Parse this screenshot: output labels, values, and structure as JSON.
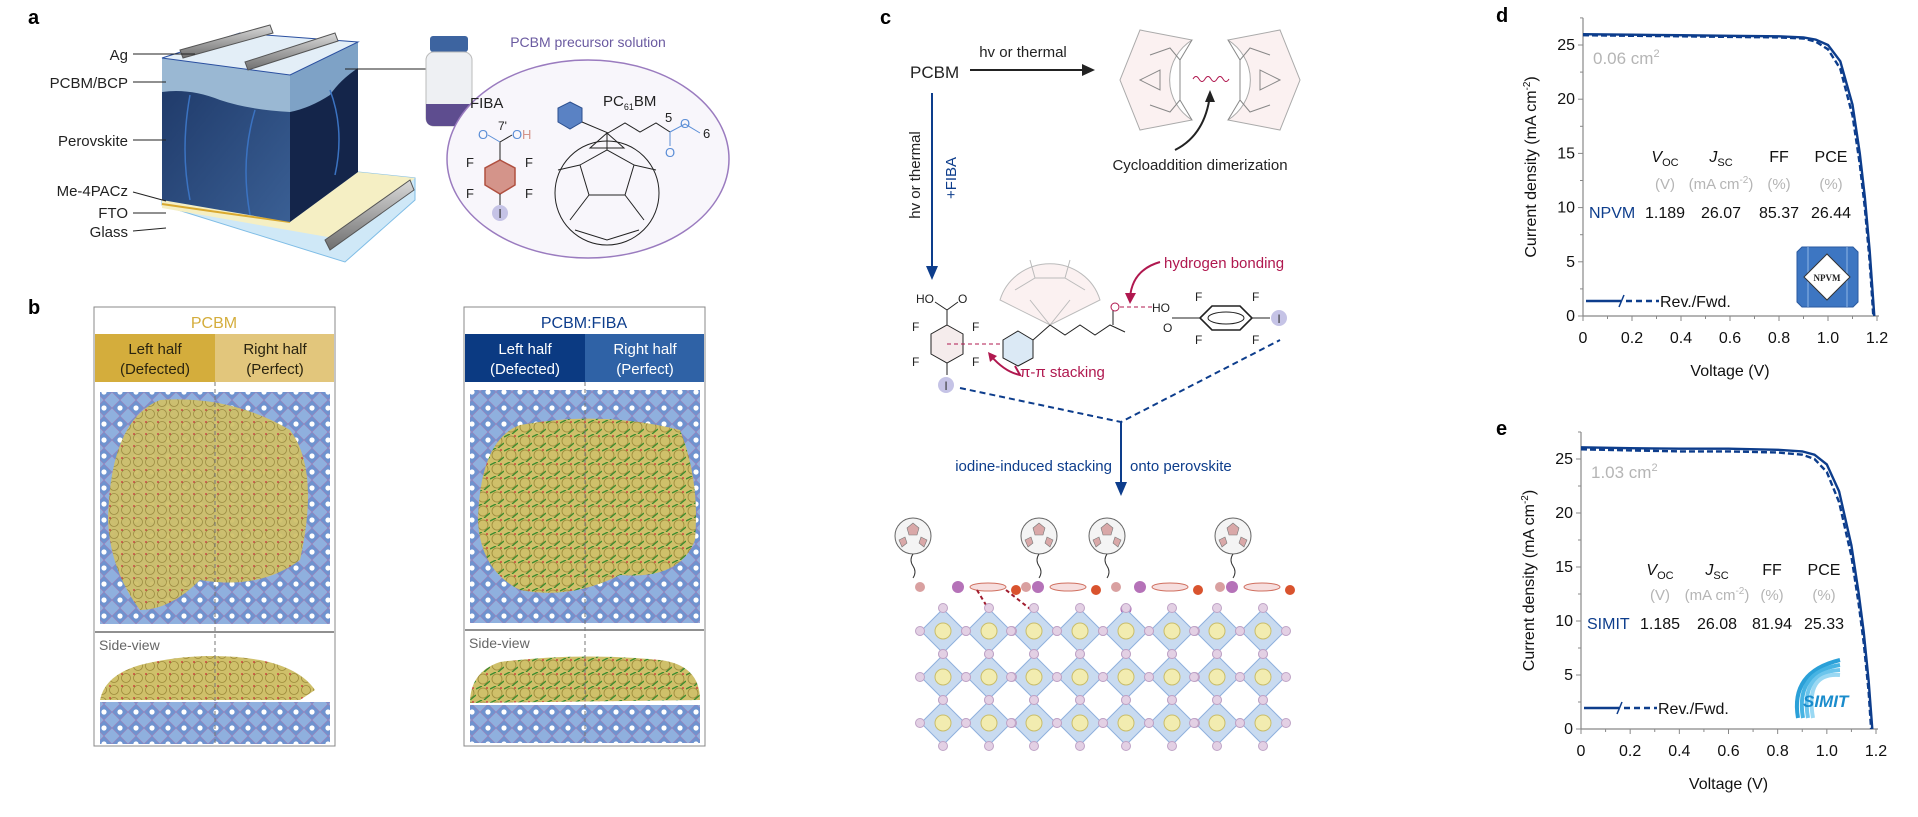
{
  "panel_labels": {
    "a": "a",
    "b": "b",
    "c": "c",
    "d": "d",
    "e": "e"
  },
  "panel_a": {
    "layers": [
      "Ag",
      "PCBM/BCP",
      "Perovskite",
      "Me-4PACz",
      "FTO",
      "Glass"
    ],
    "solution_title": "PCBM precursor solution",
    "fiba": {
      "name": "FIBA",
      "o": "O",
      "oh_o": "O",
      "oh_h": "H",
      "label7": "7'",
      "f": "F",
      "i": "I"
    },
    "pcbm": {
      "name_pre": "PC",
      "name_sub": "61",
      "name_post": "BM",
      "label5": "5",
      "label6": "6",
      "o": "O"
    }
  },
  "panel_b": {
    "left": {
      "title": "PCBM",
      "left_half": [
        "Left half",
        "(Defected)"
      ],
      "right_half": [
        "Right half",
        "(Perfect)"
      ],
      "side_view": "Side-view",
      "colors": {
        "title": "#d4ad3c",
        "left": "#d4ad3c",
        "right": "#e2c67c",
        "text": "#2a2410"
      }
    },
    "right": {
      "title": "PCBM:FIBA",
      "left_half": [
        "Left half",
        "(Defected)"
      ],
      "right_half": [
        "Right half",
        "(Perfect)"
      ],
      "side_view": "Side-view",
      "colors": {
        "title": "#0d3d8c",
        "left": "#0b3a82",
        "right": "#2f62a6",
        "text": "#ffffff"
      }
    }
  },
  "panel_c": {
    "start": "PCBM",
    "top_condition": "hv or thermal",
    "dimer_caption": "Cycloaddition dimerization",
    "side_condition": "hv or thermal",
    "additive": "+FIBA",
    "hydrogen_bonding": "hydrogen bonding",
    "pi_stacking": "π-π stacking",
    "stacking_left": "iodine-induced stacking",
    "stacking_right": "onto perovskite",
    "atoms": {
      "ho": "HO",
      "o": "O",
      "f": "F",
      "i": "I"
    }
  },
  "chart_data": [
    {
      "type": "line",
      "panel": "d",
      "xlabel": "Voltage (V)",
      "ylabel_main": "Current density (mA cm",
      "ylabel_sup": "-2",
      "ylabel_close": ")",
      "xlim": [
        0,
        1.2
      ],
      "ylim": [
        0,
        27.5
      ],
      "xticks": [
        "0",
        "0.2",
        "0.4",
        "0.6",
        "0.8",
        "1.0",
        "1.2"
      ],
      "yticks": [
        "0",
        "5",
        "10",
        "15",
        "20",
        "25"
      ],
      "grid": false,
      "area_label": "0.06 cm",
      "area_sup": "2",
      "legend": {
        "label": "Rev./Fwd.",
        "placement": "bottom-left"
      },
      "table": {
        "headers": [
          {
            "main": "V",
            "sub": "OC"
          },
          {
            "main": "J",
            "sub": "SC"
          },
          {
            "main": "FF",
            "sub": ""
          },
          {
            "main": "PCE",
            "sub": ""
          }
        ],
        "units": [
          "(V)",
          "(mA cm",
          "-2",
          ")",
          "(%)",
          "(%)"
        ],
        "device": "NPVM",
        "values": [
          "1.189",
          "26.07",
          "85.37",
          "26.44"
        ]
      },
      "logo": "NPVM",
      "color": "#0d3d8c",
      "series": [
        {
          "style": "solid",
          "x": [
            0,
            0.2,
            0.4,
            0.6,
            0.8,
            0.9,
            0.95,
            1.0,
            1.05,
            1.1,
            1.13,
            1.15,
            1.17,
            1.189
          ],
          "y": [
            26.0,
            25.95,
            25.9,
            25.85,
            25.8,
            25.7,
            25.5,
            25.0,
            23.5,
            19.5,
            15.0,
            11.0,
            6.0,
            0
          ]
        },
        {
          "style": "dashed",
          "x": [
            0,
            0.2,
            0.4,
            0.6,
            0.8,
            0.9,
            0.95,
            1.0,
            1.05,
            1.1,
            1.13,
            1.15,
            1.17,
            1.185
          ],
          "y": [
            25.9,
            25.85,
            25.8,
            25.75,
            25.7,
            25.6,
            25.3,
            24.6,
            22.8,
            18.5,
            14.0,
            10.0,
            5.0,
            0
          ]
        }
      ]
    },
    {
      "type": "line",
      "panel": "e",
      "xlabel": "Voltage (V)",
      "ylabel_main": "Current density (mA cm",
      "ylabel_sup": "-2",
      "ylabel_close": ")",
      "xlim": [
        0,
        1.2
      ],
      "ylim": [
        0,
        27.5
      ],
      "xticks": [
        "0",
        "0.2",
        "0.4",
        "0.6",
        "0.8",
        "1.0",
        "1.2"
      ],
      "yticks": [
        "0",
        "5",
        "10",
        "15",
        "20",
        "25"
      ],
      "grid": false,
      "area_label": "1.03 cm",
      "area_sup": "2",
      "legend": {
        "label": "Rev./Fwd.",
        "placement": "bottom-left"
      },
      "table": {
        "headers": [
          {
            "main": "V",
            "sub": "OC"
          },
          {
            "main": "J",
            "sub": "SC"
          },
          {
            "main": "FF",
            "sub": ""
          },
          {
            "main": "PCE",
            "sub": ""
          }
        ],
        "units": [
          "(V)",
          "(mA cm",
          "-2",
          ")",
          "(%)",
          "(%)"
        ],
        "device": "SIMIT",
        "values": [
          "1.185",
          "26.08",
          "81.94",
          "25.33"
        ]
      },
      "logo": "SIMIT",
      "color": "#0d3d8c",
      "series": [
        {
          "style": "solid",
          "x": [
            0,
            0.2,
            0.4,
            0.6,
            0.8,
            0.9,
            0.95,
            1.0,
            1.05,
            1.1,
            1.13,
            1.15,
            1.17,
            1.185
          ],
          "y": [
            26.08,
            26.0,
            25.95,
            25.95,
            25.85,
            25.7,
            25.4,
            24.5,
            22.0,
            17.0,
            12.5,
            9.0,
            4.5,
            0
          ]
        },
        {
          "style": "dashed",
          "x": [
            0,
            0.2,
            0.4,
            0.6,
            0.8,
            0.9,
            0.95,
            1.0,
            1.05,
            1.1,
            1.13,
            1.15,
            1.17,
            1.18
          ],
          "y": [
            25.9,
            25.8,
            25.7,
            25.7,
            25.6,
            25.4,
            25.0,
            23.8,
            21.0,
            16.0,
            11.5,
            8.0,
            3.5,
            0
          ]
        }
      ]
    }
  ]
}
